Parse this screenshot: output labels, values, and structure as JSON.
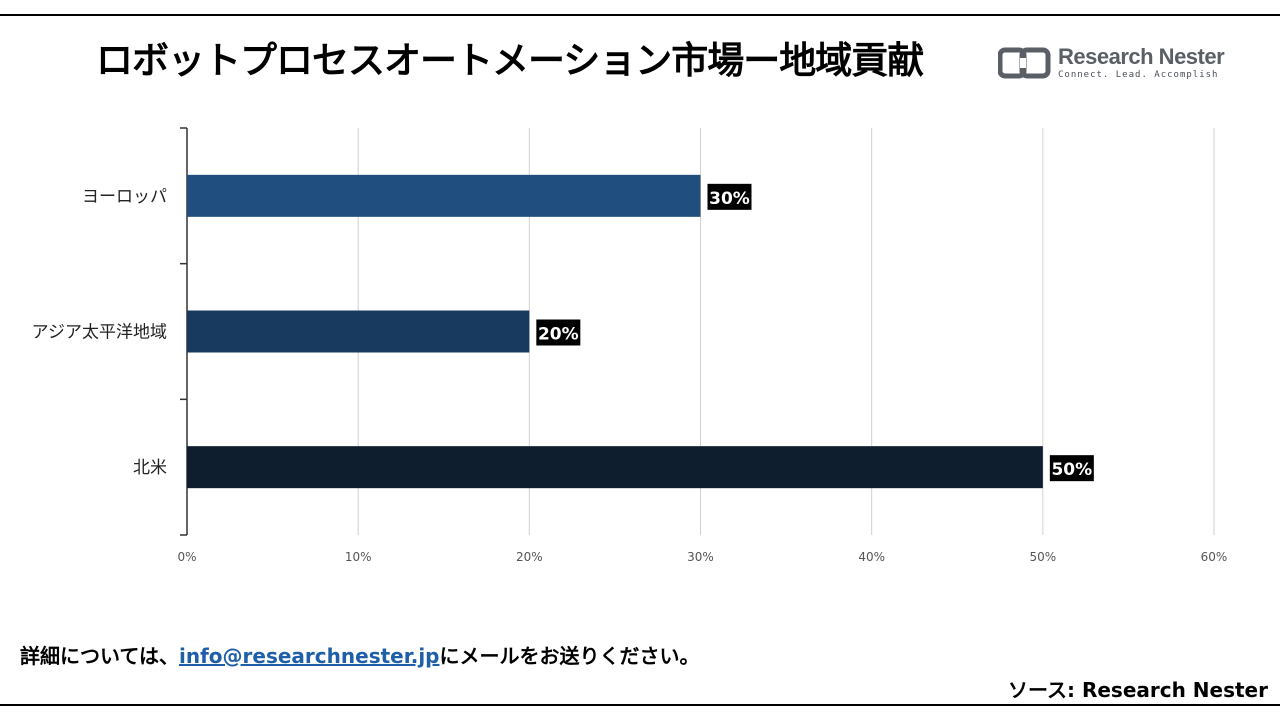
{
  "title": "ロボットプロセスオートメーション市場ー地域貢献",
  "logo": {
    "name": "Research Nester",
    "tagline": "Connect. Lead. Accomplish",
    "color": "#5a5f66"
  },
  "footer": {
    "prefix": "詳細については、",
    "email": "info@researchnester.jp",
    "suffix": "にメールをお送りください。",
    "source": "ソース: Research Nester"
  },
  "chart_data": {
    "type": "bar",
    "orientation": "horizontal",
    "categories": [
      "ヨーロッパ",
      "アジア太平洋地域",
      "北米"
    ],
    "values": [
      30,
      20,
      50
    ],
    "value_labels": [
      "30%",
      "20%",
      "50%"
    ],
    "bar_colors": [
      "#1f4e7f",
      "#173a5e",
      "#0f1e2e"
    ],
    "xlim": [
      0,
      60
    ],
    "xticks": [
      "0%",
      "10%",
      "20%",
      "30%",
      "40%",
      "50%",
      "60%"
    ],
    "grid": true,
    "legend": false
  }
}
